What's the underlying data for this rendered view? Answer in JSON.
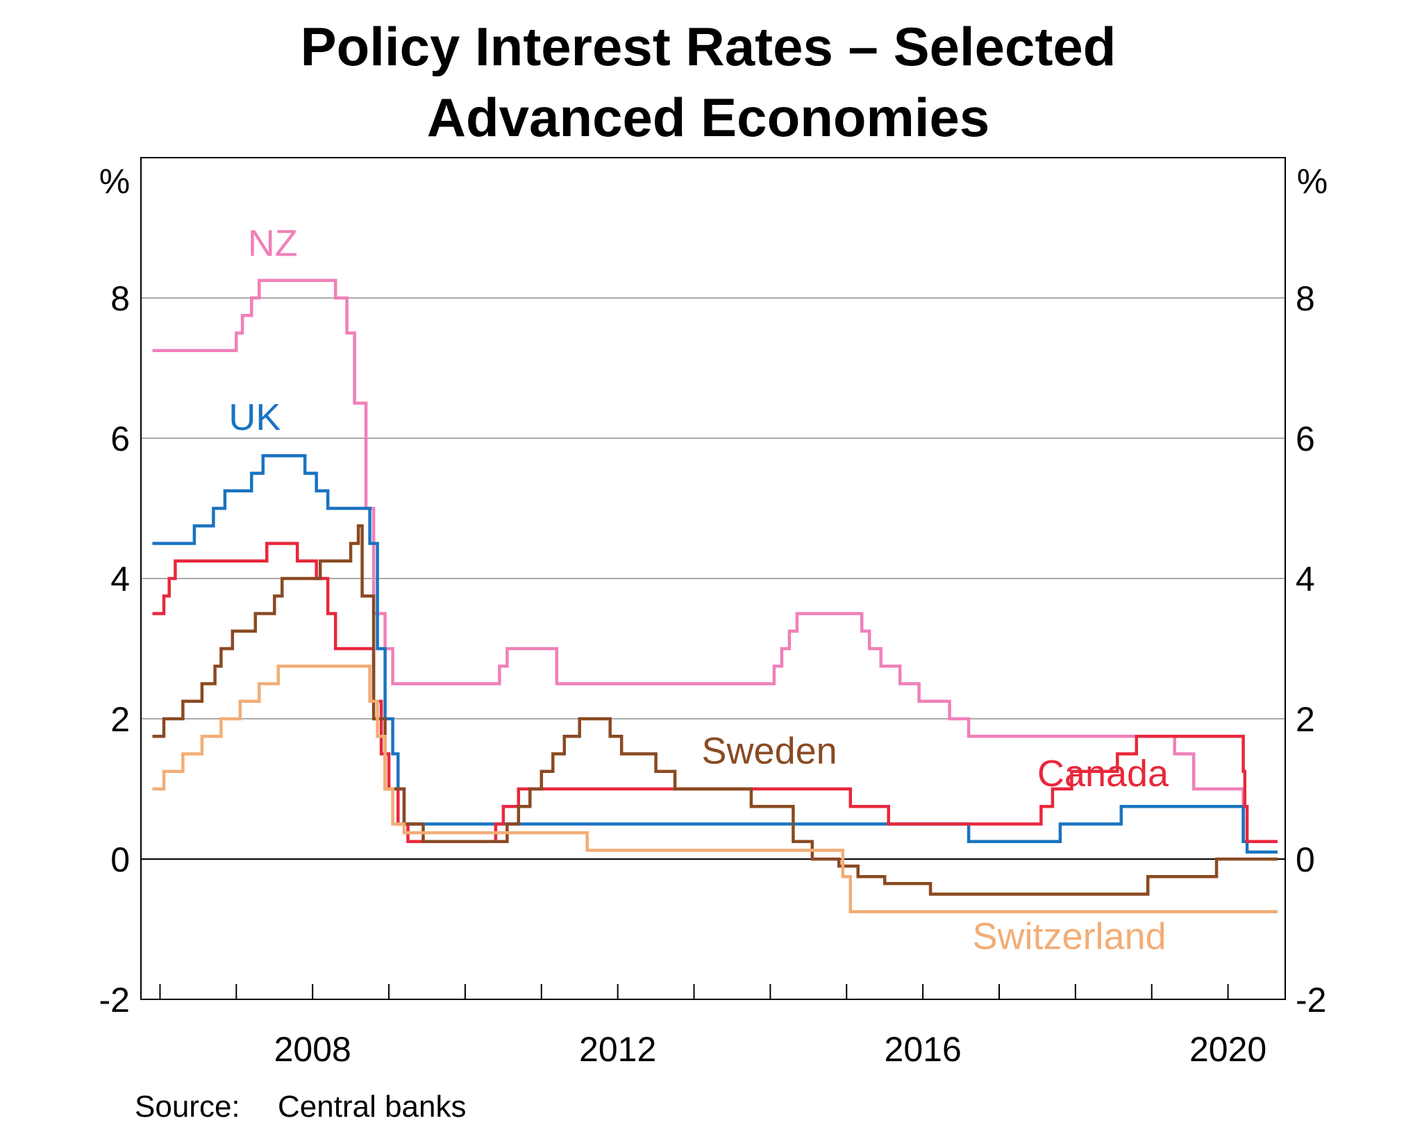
{
  "chart_data": {
    "type": "line",
    "title_lines": [
      "Policy Interest Rates – Selected",
      "Advanced Economies"
    ],
    "y_unit_left": "%",
    "y_unit_right": "%",
    "ylim": [
      -2,
      10
    ],
    "xlim": [
      2005.75,
      2020.75
    ],
    "y_ticks": [
      {
        "value": 8,
        "label": "8"
      },
      {
        "value": 6,
        "label": "6"
      },
      {
        "value": 4,
        "label": "4"
      },
      {
        "value": 2,
        "label": "2"
      },
      {
        "value": 0,
        "label": "0"
      },
      {
        "value": -2,
        "label": "-2"
      }
    ],
    "gridlines": [
      2,
      4,
      6,
      8
    ],
    "zero_line": 0,
    "x_ticks": [
      2006,
      2007,
      2008,
      2009,
      2010,
      2011,
      2012,
      2013,
      2014,
      2015,
      2016,
      2017,
      2018,
      2019,
      2020
    ],
    "x_labels": [
      {
        "value": 2008,
        "label": "2008"
      },
      {
        "value": 2012,
        "label": "2012"
      },
      {
        "value": 2016,
        "label": "2016"
      },
      {
        "value": 2020,
        "label": "2020"
      }
    ],
    "source_prefix": "Source:",
    "source_text": "Central banks",
    "series": [
      {
        "name": "NZ",
        "color": "#F080B8",
        "label": {
          "text": "NZ",
          "x": 2007.15,
          "y": 8.6
        },
        "points": [
          [
            2005.9,
            7.25
          ],
          [
            2007.0,
            7.25
          ],
          [
            2007.0,
            7.5
          ],
          [
            2007.08,
            7.5
          ],
          [
            2007.08,
            7.75
          ],
          [
            2007.2,
            7.75
          ],
          [
            2007.2,
            8.0
          ],
          [
            2007.3,
            8.0
          ],
          [
            2007.3,
            8.25
          ],
          [
            2008.3,
            8.25
          ],
          [
            2008.3,
            8.0
          ],
          [
            2008.45,
            8.0
          ],
          [
            2008.45,
            7.5
          ],
          [
            2008.55,
            7.5
          ],
          [
            2008.55,
            6.5
          ],
          [
            2008.7,
            6.5
          ],
          [
            2008.7,
            5.0
          ],
          [
            2008.8,
            5.0
          ],
          [
            2008.8,
            3.5
          ],
          [
            2008.95,
            3.5
          ],
          [
            2008.95,
            3.0
          ],
          [
            2009.05,
            3.0
          ],
          [
            2009.05,
            2.5
          ],
          [
            2010.45,
            2.5
          ],
          [
            2010.45,
            2.75
          ],
          [
            2010.55,
            2.75
          ],
          [
            2010.55,
            3.0
          ],
          [
            2011.2,
            3.0
          ],
          [
            2011.2,
            2.5
          ],
          [
            2014.05,
            2.5
          ],
          [
            2014.05,
            2.75
          ],
          [
            2014.15,
            2.75
          ],
          [
            2014.15,
            3.0
          ],
          [
            2014.25,
            3.0
          ],
          [
            2014.25,
            3.25
          ],
          [
            2014.35,
            3.25
          ],
          [
            2014.35,
            3.5
          ],
          [
            2015.2,
            3.5
          ],
          [
            2015.2,
            3.25
          ],
          [
            2015.3,
            3.25
          ],
          [
            2015.3,
            3.0
          ],
          [
            2015.45,
            3.0
          ],
          [
            2015.45,
            2.75
          ],
          [
            2015.7,
            2.75
          ],
          [
            2015.7,
            2.5
          ],
          [
            2015.95,
            2.5
          ],
          [
            2015.95,
            2.25
          ],
          [
            2016.35,
            2.25
          ],
          [
            2016.35,
            2.0
          ],
          [
            2016.6,
            2.0
          ],
          [
            2016.6,
            1.75
          ],
          [
            2019.3,
            1.75
          ],
          [
            2019.3,
            1.5
          ],
          [
            2019.55,
            1.5
          ],
          [
            2019.55,
            1.0
          ],
          [
            2020.2,
            1.0
          ],
          [
            2020.2,
            0.25
          ],
          [
            2020.65,
            0.25
          ]
        ]
      },
      {
        "name": "UK",
        "color": "#1A73C0",
        "label": {
          "text": "UK",
          "x": 2006.9,
          "y": 6.12
        },
        "points": [
          [
            2005.9,
            4.5
          ],
          [
            2006.45,
            4.5
          ],
          [
            2006.45,
            4.75
          ],
          [
            2006.7,
            4.75
          ],
          [
            2006.7,
            5.0
          ],
          [
            2006.85,
            5.0
          ],
          [
            2006.85,
            5.25
          ],
          [
            2007.2,
            5.25
          ],
          [
            2007.2,
            5.5
          ],
          [
            2007.35,
            5.5
          ],
          [
            2007.35,
            5.75
          ],
          [
            2007.9,
            5.75
          ],
          [
            2007.9,
            5.5
          ],
          [
            2008.05,
            5.5
          ],
          [
            2008.05,
            5.25
          ],
          [
            2008.2,
            5.25
          ],
          [
            2008.2,
            5.0
          ],
          [
            2008.75,
            5.0
          ],
          [
            2008.75,
            4.5
          ],
          [
            2008.85,
            4.5
          ],
          [
            2008.85,
            3.0
          ],
          [
            2008.95,
            3.0
          ],
          [
            2008.95,
            2.0
          ],
          [
            2009.05,
            2.0
          ],
          [
            2009.05,
            1.5
          ],
          [
            2009.12,
            1.5
          ],
          [
            2009.12,
            1.0
          ],
          [
            2009.2,
            1.0
          ],
          [
            2009.2,
            0.5
          ],
          [
            2016.6,
            0.5
          ],
          [
            2016.6,
            0.25
          ],
          [
            2017.8,
            0.25
          ],
          [
            2017.8,
            0.5
          ],
          [
            2018.6,
            0.5
          ],
          [
            2018.6,
            0.75
          ],
          [
            2020.2,
            0.75
          ],
          [
            2020.2,
            0.25
          ],
          [
            2020.25,
            0.25
          ],
          [
            2020.25,
            0.1
          ],
          [
            2020.65,
            0.1
          ]
        ]
      },
      {
        "name": "Canada",
        "color": "#E8283C",
        "label": {
          "text": "Canada",
          "x": 2017.5,
          "y": 1.04
        },
        "points": [
          [
            2005.9,
            3.5
          ],
          [
            2006.05,
            3.5
          ],
          [
            2006.05,
            3.75
          ],
          [
            2006.12,
            3.75
          ],
          [
            2006.12,
            4.0
          ],
          [
            2006.2,
            4.0
          ],
          [
            2006.2,
            4.25
          ],
          [
            2007.4,
            4.25
          ],
          [
            2007.4,
            4.5
          ],
          [
            2007.8,
            4.5
          ],
          [
            2007.8,
            4.25
          ],
          [
            2008.05,
            4.25
          ],
          [
            2008.05,
            4.0
          ],
          [
            2008.2,
            4.0
          ],
          [
            2008.2,
            3.5
          ],
          [
            2008.3,
            3.5
          ],
          [
            2008.3,
            3.0
          ],
          [
            2008.8,
            3.0
          ],
          [
            2008.8,
            2.25
          ],
          [
            2008.9,
            2.25
          ],
          [
            2008.9,
            1.5
          ],
          [
            2009.0,
            1.5
          ],
          [
            2009.0,
            1.0
          ],
          [
            2009.12,
            1.0
          ],
          [
            2009.12,
            0.5
          ],
          [
            2009.25,
            0.5
          ],
          [
            2009.25,
            0.25
          ],
          [
            2010.4,
            0.25
          ],
          [
            2010.4,
            0.5
          ],
          [
            2010.5,
            0.5
          ],
          [
            2010.5,
            0.75
          ],
          [
            2010.7,
            0.75
          ],
          [
            2010.7,
            1.0
          ],
          [
            2015.05,
            1.0
          ],
          [
            2015.05,
            0.75
          ],
          [
            2015.55,
            0.75
          ],
          [
            2015.55,
            0.5
          ],
          [
            2017.55,
            0.5
          ],
          [
            2017.55,
            0.75
          ],
          [
            2017.7,
            0.75
          ],
          [
            2017.7,
            1.0
          ],
          [
            2017.95,
            1.0
          ],
          [
            2017.95,
            1.25
          ],
          [
            2018.55,
            1.25
          ],
          [
            2018.55,
            1.5
          ],
          [
            2018.8,
            1.5
          ],
          [
            2018.8,
            1.75
          ],
          [
            2020.2,
            1.75
          ],
          [
            2020.2,
            1.25
          ],
          [
            2020.22,
            1.25
          ],
          [
            2020.22,
            0.75
          ],
          [
            2020.25,
            0.75
          ],
          [
            2020.25,
            0.25
          ],
          [
            2020.65,
            0.25
          ]
        ]
      },
      {
        "name": "Sweden",
        "color": "#8A4A22",
        "label": {
          "text": "Sweden",
          "x": 2013.1,
          "y": 1.36
        },
        "points": [
          [
            2005.9,
            1.75
          ],
          [
            2006.05,
            1.75
          ],
          [
            2006.05,
            2.0
          ],
          [
            2006.3,
            2.0
          ],
          [
            2006.3,
            2.25
          ],
          [
            2006.55,
            2.25
          ],
          [
            2006.55,
            2.5
          ],
          [
            2006.72,
            2.5
          ],
          [
            2006.72,
            2.75
          ],
          [
            2006.8,
            2.75
          ],
          [
            2006.8,
            3.0
          ],
          [
            2006.95,
            3.0
          ],
          [
            2006.95,
            3.25
          ],
          [
            2007.25,
            3.25
          ],
          [
            2007.25,
            3.5
          ],
          [
            2007.5,
            3.5
          ],
          [
            2007.5,
            3.75
          ],
          [
            2007.6,
            3.75
          ],
          [
            2007.6,
            4.0
          ],
          [
            2008.1,
            4.0
          ],
          [
            2008.1,
            4.25
          ],
          [
            2008.5,
            4.25
          ],
          [
            2008.5,
            4.5
          ],
          [
            2008.6,
            4.5
          ],
          [
            2008.6,
            4.75
          ],
          [
            2008.65,
            4.75
          ],
          [
            2008.65,
            3.75
          ],
          [
            2008.8,
            3.75
          ],
          [
            2008.8,
            2.0
          ],
          [
            2008.95,
            2.0
          ],
          [
            2008.95,
            1.0
          ],
          [
            2009.2,
            1.0
          ],
          [
            2009.2,
            0.5
          ],
          [
            2009.45,
            0.5
          ],
          [
            2009.45,
            0.25
          ],
          [
            2010.55,
            0.25
          ],
          [
            2010.55,
            0.5
          ],
          [
            2010.7,
            0.5
          ],
          [
            2010.7,
            0.75
          ],
          [
            2010.85,
            0.75
          ],
          [
            2010.85,
            1.0
          ],
          [
            2011.0,
            1.0
          ],
          [
            2011.0,
            1.25
          ],
          [
            2011.15,
            1.25
          ],
          [
            2011.15,
            1.5
          ],
          [
            2011.3,
            1.5
          ],
          [
            2011.3,
            1.75
          ],
          [
            2011.5,
            1.75
          ],
          [
            2011.5,
            2.0
          ],
          [
            2011.9,
            2.0
          ],
          [
            2011.9,
            1.75
          ],
          [
            2012.05,
            1.75
          ],
          [
            2012.05,
            1.5
          ],
          [
            2012.5,
            1.5
          ],
          [
            2012.5,
            1.25
          ],
          [
            2012.75,
            1.25
          ],
          [
            2012.75,
            1.0
          ],
          [
            2013.75,
            1.0
          ],
          [
            2013.75,
            0.75
          ],
          [
            2014.3,
            0.75
          ],
          [
            2014.3,
            0.25
          ],
          [
            2014.55,
            0.25
          ],
          [
            2014.55,
            0.0
          ],
          [
            2014.9,
            0.0
          ],
          [
            2014.9,
            -0.1
          ],
          [
            2015.15,
            -0.1
          ],
          [
            2015.15,
            -0.25
          ],
          [
            2015.5,
            -0.25
          ],
          [
            2015.5,
            -0.35
          ],
          [
            2016.1,
            -0.35
          ],
          [
            2016.1,
            -0.5
          ],
          [
            2018.95,
            -0.5
          ],
          [
            2018.95,
            -0.25
          ],
          [
            2019.85,
            -0.25
          ],
          [
            2019.85,
            0.0
          ],
          [
            2020.65,
            0.0
          ]
        ]
      },
      {
        "name": "Switzerland",
        "color": "#F2AD76",
        "label": {
          "text": "Switzerland",
          "x": 2016.65,
          "y": -1.28
        },
        "points": [
          [
            2005.9,
            1.0
          ],
          [
            2006.05,
            1.0
          ],
          [
            2006.05,
            1.25
          ],
          [
            2006.3,
            1.25
          ],
          [
            2006.3,
            1.5
          ],
          [
            2006.55,
            1.5
          ],
          [
            2006.55,
            1.75
          ],
          [
            2006.8,
            1.75
          ],
          [
            2006.8,
            2.0
          ],
          [
            2007.05,
            2.0
          ],
          [
            2007.05,
            2.25
          ],
          [
            2007.3,
            2.25
          ],
          [
            2007.3,
            2.5
          ],
          [
            2007.55,
            2.5
          ],
          [
            2007.55,
            2.75
          ],
          [
            2008.75,
            2.75
          ],
          [
            2008.75,
            2.25
          ],
          [
            2008.85,
            2.25
          ],
          [
            2008.85,
            1.75
          ],
          [
            2008.95,
            1.75
          ],
          [
            2008.95,
            1.0
          ],
          [
            2009.05,
            1.0
          ],
          [
            2009.05,
            0.5
          ],
          [
            2009.2,
            0.5
          ],
          [
            2009.2,
            0.375
          ],
          [
            2011.6,
            0.375
          ],
          [
            2011.6,
            0.125
          ],
          [
            2014.95,
            0.125
          ],
          [
            2014.95,
            -0.25
          ],
          [
            2015.05,
            -0.25
          ],
          [
            2015.05,
            -0.75
          ],
          [
            2020.65,
            -0.75
          ]
        ]
      }
    ]
  }
}
